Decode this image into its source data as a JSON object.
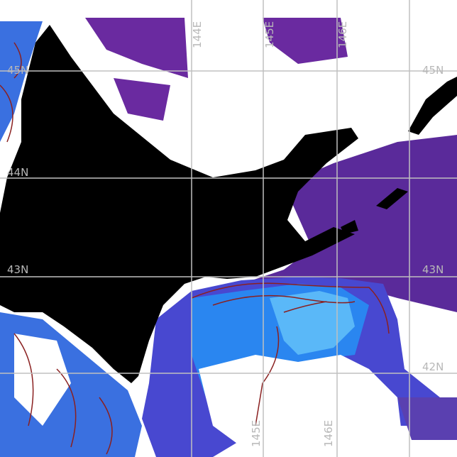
{
  "map": {
    "colors": {
      "land": "#000000",
      "cloud": "#ffffff",
      "cold_water": "#5a2a9a",
      "mid_water": "#3a50d8",
      "warm_water": "#2a86f0",
      "warmest_water": "#5ab8f8",
      "contour": "#8a2020",
      "grid": "#c0c0c0"
    },
    "lat_labels_left": [
      "45N",
      "44N",
      "43N"
    ],
    "lat_labels_right": [
      "45N",
      "43N",
      "42N"
    ],
    "lon_labels_top": [
      "144E",
      "145E",
      "146E"
    ],
    "lon_labels_bottom": [
      "145E",
      "146E"
    ]
  }
}
